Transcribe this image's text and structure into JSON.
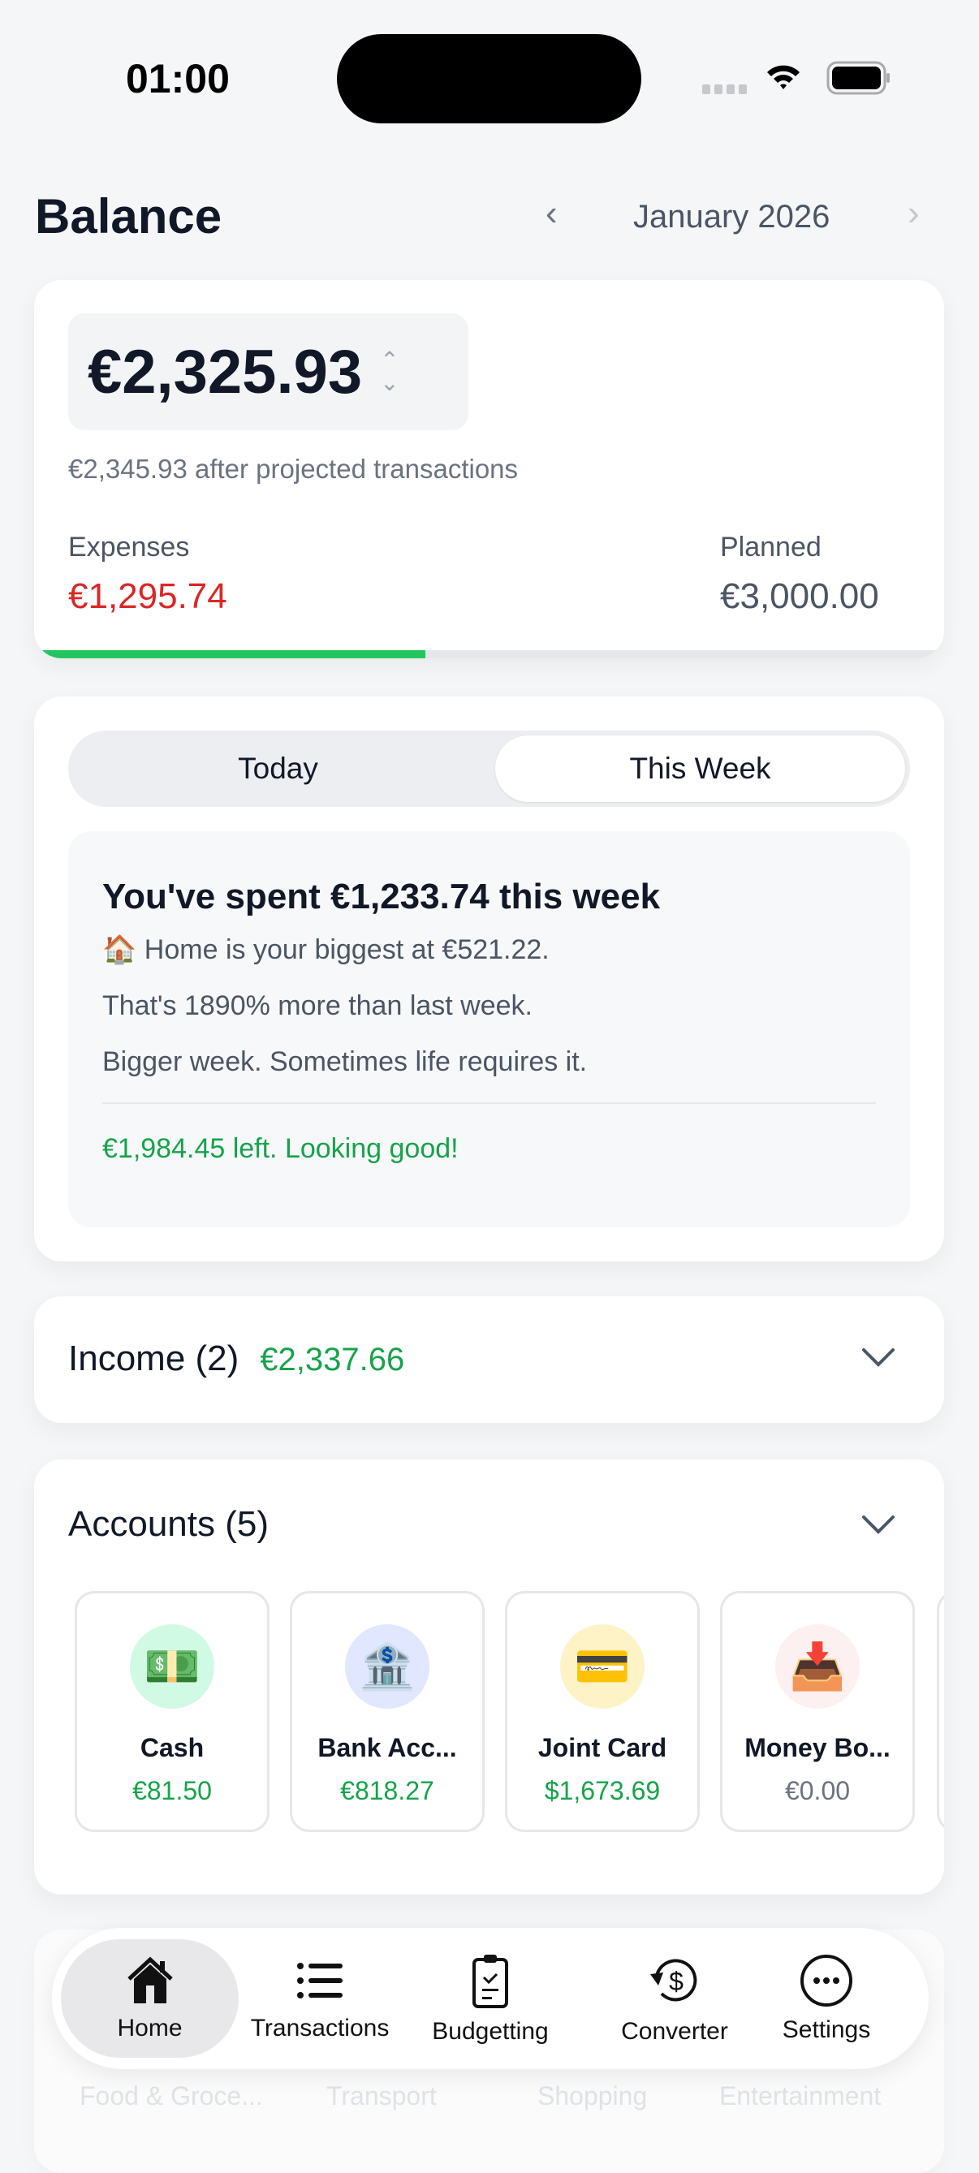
{
  "status_bar": {
    "time": "01:00"
  },
  "header": {
    "title": "Balance",
    "month": "January 2026"
  },
  "balance": {
    "amount": "€2,325.93",
    "projected": "€2,345.93 after projected transactions",
    "expenses_label": "Expenses",
    "expenses_value": "€1,295.74",
    "planned_label": "Planned",
    "planned_value": "€3,000.00",
    "progress_fraction": 0.43,
    "colors": {
      "expenses": "#dc2626",
      "progress": "#22c55e"
    }
  },
  "spending": {
    "tabs": [
      {
        "label": "Today"
      },
      {
        "label": "This Week"
      }
    ],
    "active_tab": "This Week",
    "title": "You've spent €1,233.74 this week",
    "biggest_icon": "🏠",
    "biggest": "Home is your biggest at €521.22.",
    "comparison": "That's 1890% more than last week.",
    "comment": "Bigger week. Sometimes life requires it.",
    "remaining": "€1,984.45 left. Looking good!"
  },
  "income": {
    "title": "Income (2)",
    "amount": "€2,337.66"
  },
  "accounts": {
    "title": "Accounts (5)",
    "items": [
      {
        "icon": "💵",
        "name": "Cash",
        "amount": "€81.50",
        "bg": "#d1fae5",
        "color": "#16a34a"
      },
      {
        "icon": "🏦",
        "name": "Bank Acc...",
        "amount": "€818.27",
        "bg": "#e0e7ff",
        "color": "#16a34a"
      },
      {
        "icon": "💳",
        "name": "Joint Card",
        "amount": "$1,673.69",
        "bg": "#fef3c7",
        "color": "#16a34a"
      },
      {
        "icon": "📥",
        "name": "Money Bo...",
        "amount": "€0.00",
        "bg": "#fdf0f0",
        "color": "#6b7280"
      }
    ]
  },
  "categories": {
    "items": [
      "Food & Groce...",
      "Transport",
      "Shopping",
      "Entertainment"
    ]
  },
  "tabbar": {
    "items": [
      {
        "label": "Home",
        "icon": "home-icon"
      },
      {
        "label": "Transactions",
        "icon": "list-icon"
      },
      {
        "label": "Budgetting",
        "icon": "clipboard-icon"
      },
      {
        "label": "Converter",
        "icon": "currency-exchange-icon"
      },
      {
        "label": "Settings",
        "icon": "more-icon"
      }
    ],
    "active": "Home"
  }
}
